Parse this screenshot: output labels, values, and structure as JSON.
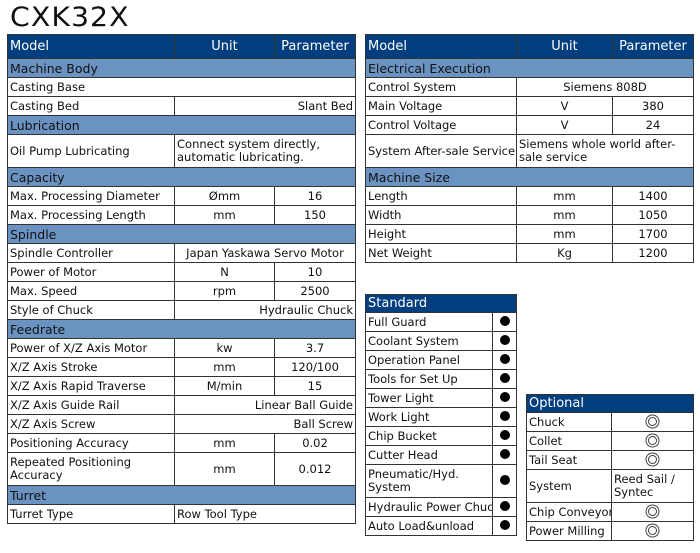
{
  "title": "CXK32X",
  "header": {
    "model": "Model",
    "unit": "Unit",
    "parameter": "Parameter"
  },
  "left": [
    {
      "type": "s",
      "label": "Machine Body"
    },
    {
      "type": "full",
      "label": "Casting Base",
      "value": ""
    },
    {
      "type": "span",
      "label": "Casting Bed",
      "value": "Slant Bed",
      "align": "rt"
    },
    {
      "type": "s",
      "label": "Lubrication"
    },
    {
      "type": "spant",
      "label": "Oil Pump Lubricating",
      "value": "Connect system directly, automatic lubricating.",
      "align": "l"
    },
    {
      "type": "s",
      "label": "Capacity"
    },
    {
      "type": "r",
      "label": "Max. Processing Diameter",
      "unit": "Ømm",
      "value": "16"
    },
    {
      "type": "r",
      "label": "Max. Processing Length",
      "unit": "mm",
      "value": "150"
    },
    {
      "type": "s",
      "label": "Spindle"
    },
    {
      "type": "span",
      "label": "Spindle Controller",
      "value": "Japan Yaskawa Servo Motor",
      "align": "c"
    },
    {
      "type": "r",
      "label": "Power of Motor",
      "unit": "N",
      "value": "10"
    },
    {
      "type": "r",
      "label": "Max. Speed",
      "unit": "rpm",
      "value": "2500"
    },
    {
      "type": "span",
      "label": "Style of Chuck",
      "value": "Hydraulic Chuck",
      "align": "rt"
    },
    {
      "type": "s",
      "label": "Feedrate"
    },
    {
      "type": "r",
      "label": "Power of X/Z Axis Motor",
      "unit": "kw",
      "value": "3.7"
    },
    {
      "type": "r",
      "label": "X/Z Axis Stroke",
      "unit": "mm",
      "value": "120/100"
    },
    {
      "type": "r",
      "label": "X/Z Axis Rapid Traverse",
      "unit": "M/min",
      "value": "15"
    },
    {
      "type": "span",
      "label": "X/Z Axis Guide Rail",
      "value": "Linear Ball Guide",
      "align": "rt"
    },
    {
      "type": "span",
      "label": "X/Z Axis Screw",
      "value": "Ball Screw",
      "align": "rt"
    },
    {
      "type": "r",
      "label": "Positioning Accuracy",
      "unit": "mm",
      "value": "0.02"
    },
    {
      "type": "rt",
      "label": "Repeated Positioning Accuracy",
      "unit": "mm",
      "value": "0.012"
    },
    {
      "type": "s",
      "label": "Turret"
    },
    {
      "type": "span",
      "label": "Turret Type",
      "value": "Row Tool Type",
      "align": "l"
    }
  ],
  "right": [
    {
      "type": "s",
      "label": "Electrical Execution"
    },
    {
      "type": "span",
      "label": "Control System",
      "value": "Siemens 808D",
      "align": "c"
    },
    {
      "type": "r",
      "label": "Main Voltage",
      "unit": "V",
      "value": "380"
    },
    {
      "type": "r",
      "label": "Control Voltage",
      "unit": "V",
      "value": "24"
    },
    {
      "type": "spant",
      "label": "System After-sale Service",
      "value": "Siemens whole world after-sale service",
      "align": "l"
    },
    {
      "type": "s",
      "label": "Machine Size"
    },
    {
      "type": "r",
      "label": "Length",
      "unit": "mm",
      "value": "1400"
    },
    {
      "type": "r",
      "label": "Width",
      "unit": "mm",
      "value": "1050"
    },
    {
      "type": "r",
      "label": "Height",
      "unit": "mm",
      "value": "1700"
    },
    {
      "type": "r",
      "label": "Net Weight",
      "unit": "Kg",
      "value": "1200"
    }
  ],
  "standard": {
    "title": "Standard",
    "mark_icon": "filled-circle",
    "items": [
      "Full Guard",
      "Coolant System",
      "Operation Panel",
      "Tools for Set Up",
      "Tower Light",
      "Work Light",
      "Chip Bucket",
      "Cutter Head",
      "Pneumatic/Hyd. System",
      "Hydraulic Power Chuck",
      "Auto Load&unload"
    ]
  },
  "optional": {
    "title": "Optional",
    "mark_icon": "double-circle",
    "items": [
      {
        "label": "Chuck"
      },
      {
        "label": "Collet"
      },
      {
        "label": "Tail Seat"
      },
      {
        "label": "System",
        "value": "Reed Sail / Syntec"
      },
      {
        "label": "Chip Conveyor"
      },
      {
        "label": "Power Milling"
      }
    ]
  },
  "colors": {
    "header": "#033f7f",
    "section": "#6a93c2"
  }
}
